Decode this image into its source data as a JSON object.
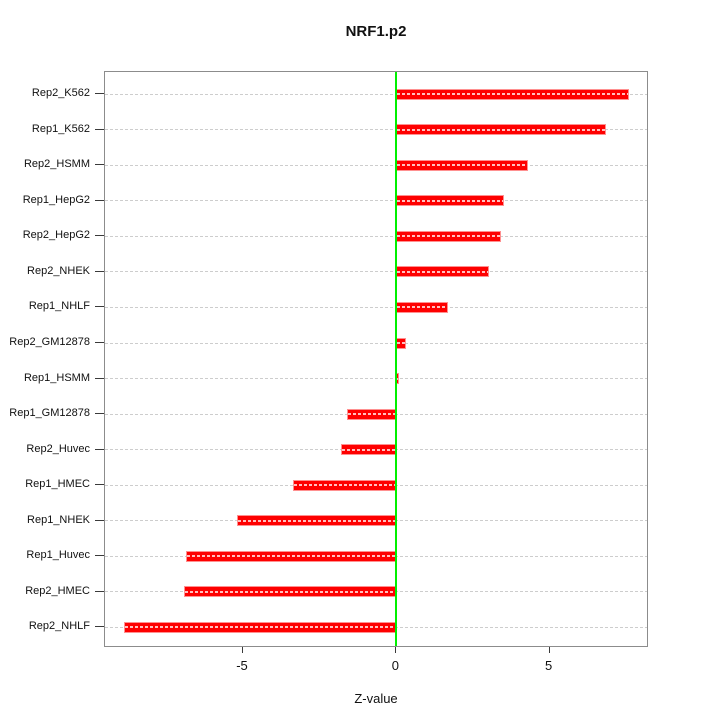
{
  "chart_data": {
    "type": "bar",
    "orientation": "horizontal",
    "title": "NRF1.p2",
    "xlabel": "Z-value",
    "categories": [
      "Rep2_K562",
      "Rep1_K562",
      "Rep2_HSMM",
      "Rep1_HepG2",
      "Rep2_HepG2",
      "Rep2_NHEK",
      "Rep1_NHLF",
      "Rep2_GM12878",
      "Rep1_HSMM",
      "Rep1_GM12878",
      "Rep2_Huvec",
      "Rep1_HMEC",
      "Rep1_NHEK",
      "Rep1_Huvec",
      "Rep2_HMEC",
      "Rep2_NHLF"
    ],
    "values": [
      7.59,
      6.83,
      4.28,
      3.52,
      3.43,
      3.03,
      1.67,
      0.31,
      0.1,
      -1.61,
      -1.81,
      -3.38,
      -5.2,
      -6.86,
      -6.92,
      -8.87
    ],
    "xlim": [
      -9.5,
      8.24
    ],
    "xticks": [
      -5,
      0,
      5
    ],
    "xtick_labels": [
      "-5",
      "0",
      "5"
    ],
    "grid": "horizontal-dashed-per-category",
    "legend": "none",
    "colors": {
      "bar_fill": "#fe0000",
      "bar_border": "#ff9090",
      "zero_line": "#00f000",
      "grid_line": "#cdcdcd",
      "axis_box": "#8c8c8c",
      "tick": "#3a3a3a",
      "text": "#111111",
      "background": "#ffffff"
    }
  }
}
